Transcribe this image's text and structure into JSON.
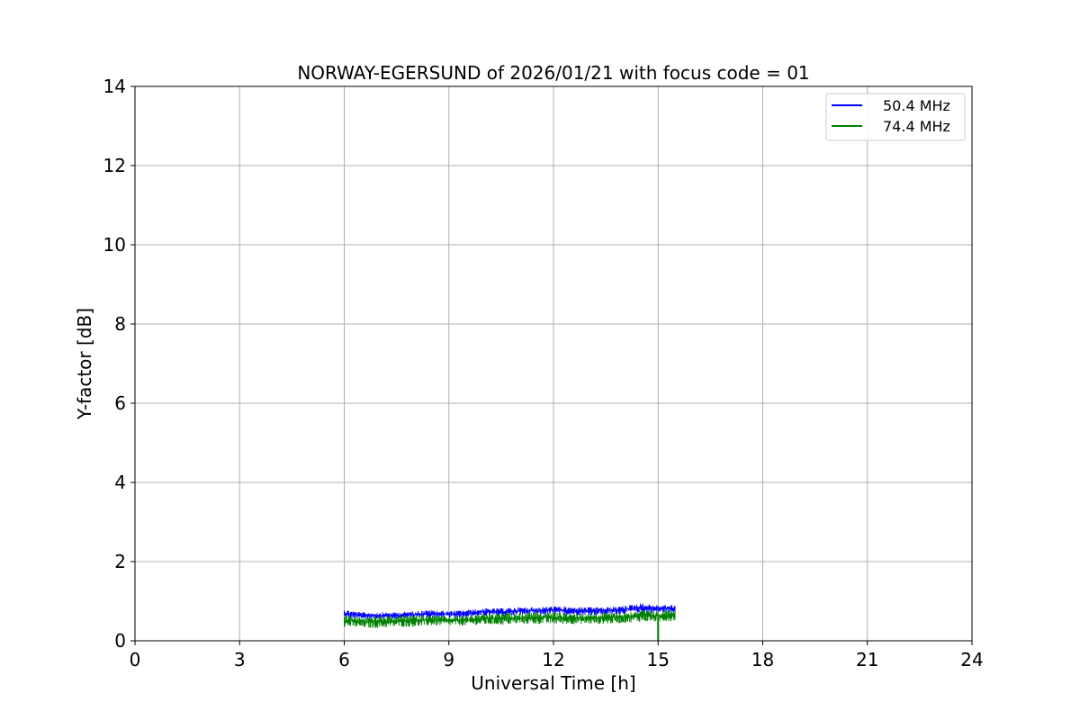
{
  "chart_data": {
    "type": "line",
    "title": "NORWAY-EGERSUND of 2026/01/21 with focus code = 01",
    "xlabel": "Universal Time [h]",
    "ylabel": "Y-factor [dB]",
    "xlim": [
      0,
      24
    ],
    "ylim": [
      0,
      14
    ],
    "xticks": [
      0,
      3,
      6,
      9,
      12,
      15,
      18,
      21,
      24
    ],
    "yticks": [
      0,
      2,
      4,
      6,
      8,
      10,
      12,
      14
    ],
    "grid": true,
    "legend_position": "top-right",
    "series": [
      {
        "name": "50.4 MHz",
        "color": "#0000ff",
        "x": [
          6.0,
          6.5,
          7.0,
          7.5,
          8.0,
          8.5,
          9.0,
          9.5,
          10.0,
          10.5,
          11.0,
          11.5,
          12.0,
          12.5,
          13.0,
          13.5,
          14.0,
          14.5,
          15.0,
          15.5
        ],
        "y_low": [
          0.55,
          0.55,
          0.55,
          0.55,
          0.58,
          0.58,
          0.58,
          0.6,
          0.62,
          0.62,
          0.65,
          0.65,
          0.65,
          0.65,
          0.65,
          0.65,
          0.68,
          0.7,
          0.7,
          0.72
        ],
        "y_high": [
          0.8,
          0.72,
          0.72,
          0.72,
          0.75,
          0.78,
          0.75,
          0.78,
          0.82,
          0.82,
          0.85,
          0.85,
          0.88,
          0.85,
          0.85,
          0.85,
          0.88,
          0.95,
          0.9,
          0.92
        ]
      },
      {
        "name": "74.4 MHz",
        "color": "#008000",
        "x": [
          6.0,
          6.5,
          7.0,
          7.5,
          8.0,
          8.5,
          9.0,
          9.5,
          10.0,
          10.5,
          11.0,
          11.5,
          12.0,
          12.5,
          13.0,
          13.5,
          14.0,
          14.5,
          15.0,
          15.5
        ],
        "y_low": [
          0.35,
          0.32,
          0.32,
          0.35,
          0.35,
          0.38,
          0.38,
          0.38,
          0.4,
          0.4,
          0.42,
          0.42,
          0.42,
          0.42,
          0.42,
          0.42,
          0.45,
          0.48,
          0.0,
          0.5
        ],
        "y_high": [
          0.65,
          0.6,
          0.62,
          0.62,
          0.65,
          0.65,
          0.62,
          0.65,
          0.68,
          0.7,
          0.7,
          0.72,
          0.72,
          0.7,
          0.7,
          0.72,
          0.72,
          0.78,
          0.75,
          0.82
        ]
      }
    ]
  }
}
